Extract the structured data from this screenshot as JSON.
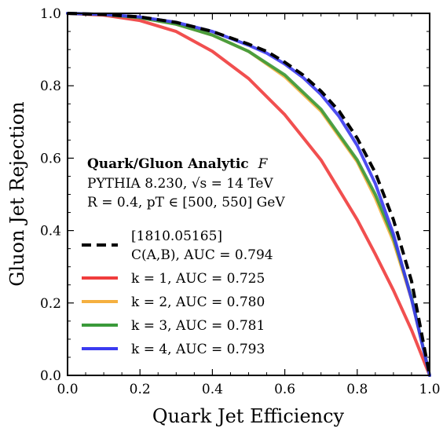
{
  "chart_data": {
    "type": "line",
    "xlabel": "Quark Jet Efficiency",
    "ylabel": "Gluon Jet Rejection",
    "xlim": [
      0.0,
      1.0
    ],
    "ylim": [
      0.0,
      1.0
    ],
    "xticks": [
      "0.0",
      "0.2",
      "0.4",
      "0.6",
      "0.8",
      "1.0"
    ],
    "yticks": [
      "0.0",
      "0.2",
      "0.4",
      "0.6",
      "0.8",
      "1.0"
    ],
    "grid": false,
    "legend_placement": "center-left",
    "annotation": {
      "title_bold": "Quark/Gluon Analytic",
      "title_italic": "F",
      "line2": "PYTHIA 8.230, √s = 14 TeV",
      "line3": "R = 0.4, pT ∈ [500, 550] GeV"
    },
    "series": [
      {
        "name": "[1810.05165]",
        "name_line2": "C(A,B), AUC = 0.794",
        "color": "#000000",
        "dashed": true,
        "x": [
          0.0,
          0.1,
          0.2,
          0.3,
          0.4,
          0.5,
          0.55,
          0.6,
          0.65,
          0.7,
          0.75,
          0.8,
          0.85,
          0.9,
          0.95,
          1.0
        ],
        "y": [
          1.0,
          0.997,
          0.99,
          0.975,
          0.95,
          0.915,
          0.895,
          0.865,
          0.83,
          0.785,
          0.73,
          0.655,
          0.56,
          0.43,
          0.26,
          0.0
        ]
      },
      {
        "name": "k = 1, AUC = 0.725",
        "color": "#f03c3c",
        "dashed": false,
        "x": [
          0.0,
          0.1,
          0.2,
          0.3,
          0.4,
          0.5,
          0.6,
          0.7,
          0.8,
          0.85,
          0.9,
          0.95,
          1.0
        ],
        "y": [
          1.0,
          0.995,
          0.98,
          0.95,
          0.895,
          0.82,
          0.72,
          0.595,
          0.43,
          0.335,
          0.235,
          0.125,
          0.0
        ]
      },
      {
        "name": "k = 2, AUC = 0.780",
        "color": "#f5b040",
        "dashed": false,
        "x": [
          0.0,
          0.1,
          0.2,
          0.3,
          0.4,
          0.5,
          0.6,
          0.7,
          0.8,
          0.85,
          0.9,
          0.95,
          1.0
        ],
        "y": [
          1.0,
          0.997,
          0.988,
          0.97,
          0.94,
          0.895,
          0.825,
          0.73,
          0.59,
          0.49,
          0.37,
          0.21,
          0.0
        ]
      },
      {
        "name": "k = 3, AUC = 0.781",
        "color": "#3a9a3a",
        "dashed": false,
        "x": [
          0.0,
          0.1,
          0.2,
          0.3,
          0.4,
          0.5,
          0.6,
          0.7,
          0.8,
          0.85,
          0.9,
          0.95,
          1.0
        ],
        "y": [
          1.0,
          0.997,
          0.988,
          0.97,
          0.94,
          0.895,
          0.83,
          0.735,
          0.595,
          0.5,
          0.38,
          0.215,
          0.0
        ]
      },
      {
        "name": "k = 4, AUC = 0.793",
        "color": "#3a3af0",
        "dashed": false,
        "x": [
          0.0,
          0.1,
          0.2,
          0.3,
          0.4,
          0.5,
          0.55,
          0.6,
          0.65,
          0.7,
          0.75,
          0.8,
          0.85,
          0.9,
          0.95,
          1.0
        ],
        "y": [
          1.0,
          0.997,
          0.99,
          0.975,
          0.95,
          0.912,
          0.89,
          0.86,
          0.823,
          0.776,
          0.715,
          0.635,
          0.53,
          0.39,
          0.21,
          0.0
        ]
      }
    ]
  }
}
